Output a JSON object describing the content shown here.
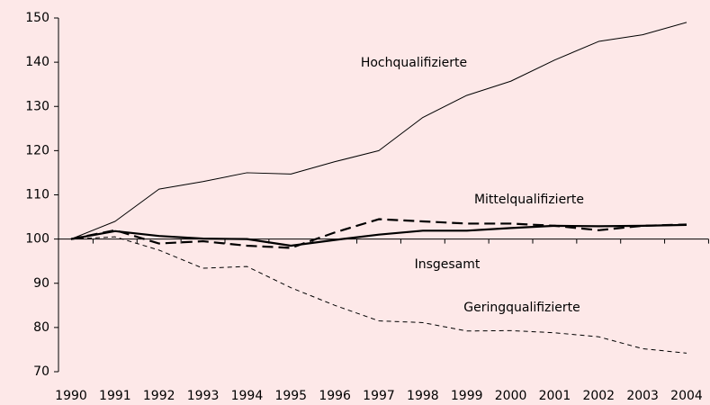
{
  "chart_data": {
    "type": "line",
    "categories": [
      "1990",
      "1991",
      "1992",
      "1993",
      "1994",
      "1995",
      "1996",
      "1997",
      "1998",
      "1999",
      "2000",
      "2001",
      "2002",
      "2003",
      "2004"
    ],
    "series": [
      {
        "name": "Hochqualifizierte",
        "color": "#000000",
        "style": "solid",
        "linewidth": 1,
        "values": [
          100,
          104,
          111.3,
          113,
          115,
          114.7,
          117.5,
          120,
          127.5,
          132.5,
          135.7,
          140.5,
          144.7,
          146.2,
          149
        ]
      },
      {
        "name": "Mittelqualifizierte",
        "color": "#000000",
        "style": "dashed",
        "linewidth": 2.2,
        "values": [
          100,
          102,
          99,
          99.5,
          98.5,
          98,
          101.5,
          104.5,
          104,
          103.5,
          103.5,
          103,
          102,
          103,
          103.3
        ]
      },
      {
        "name": "Insgesamt",
        "color": "#000000",
        "style": "solid",
        "linewidth": 2.2,
        "values": [
          100,
          101.8,
          100.7,
          100.1,
          100,
          98.5,
          99.8,
          101,
          101.9,
          101.9,
          102.5,
          103,
          102.9,
          103,
          103.2
        ]
      },
      {
        "name": "Geringqualifizierte",
        "color": "#000000",
        "style": "dashed",
        "linewidth": 1,
        "values": [
          100,
          100.5,
          97.5,
          93.4,
          93.8,
          89,
          85,
          81.5,
          81.1,
          79.2,
          79.3,
          78.8,
          77.9,
          75.2,
          74.2
        ]
      }
    ],
    "ylim": [
      70,
      150
    ],
    "yticks": [
      70,
      80,
      90,
      100,
      110,
      120,
      130,
      140,
      150
    ],
    "x_axis_crossing": 100
  }
}
